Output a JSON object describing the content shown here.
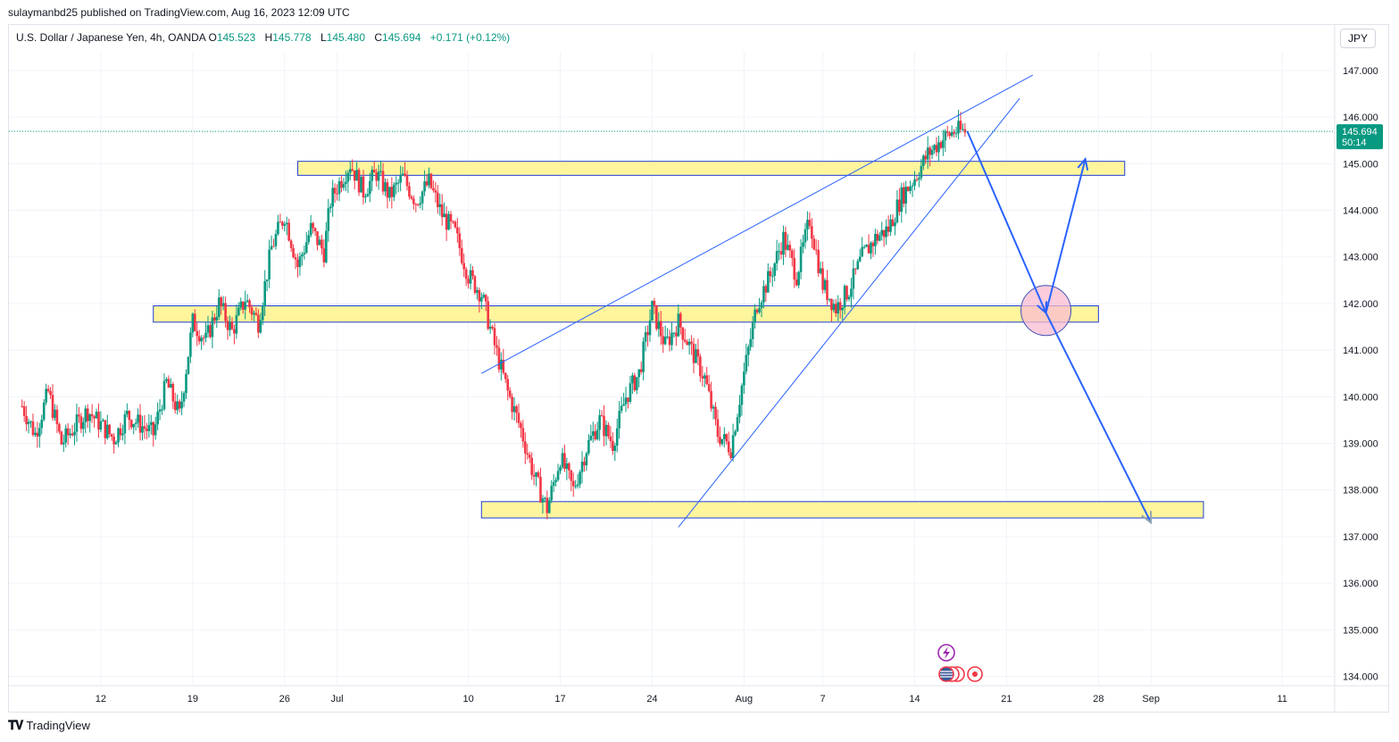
{
  "header": {
    "published": "sulaymanbd25 published on TradingView.com, Aug 16, 2023 12:09 UTC"
  },
  "legend": {
    "symbol": "U.S. Dollar / Japanese Yen, 4h, OANDA",
    "open_label": "O",
    "open": "145.523",
    "high_label": "H",
    "high": "145.778",
    "low_label": "L",
    "low": "145.480",
    "close_label": "C",
    "close": "145.694",
    "change": "+0.171 (+0.12%)"
  },
  "currency_button": "JPY",
  "price_tag": {
    "price": "145.694",
    "countdown": "50:14"
  },
  "footer": {
    "brand": "TradingView",
    "logo": "tradingview-logo"
  },
  "chart_data": {
    "type": "candlestick",
    "timeframe": "4h",
    "ylim": [
      133.8,
      147.4
    ],
    "y_ticks": [
      "147.000",
      "146.000",
      "145.000",
      "144.000",
      "143.000",
      "142.000",
      "141.000",
      "140.000",
      "139.000",
      "138.000",
      "137.000",
      "136.000",
      "135.000",
      "134.000"
    ],
    "x_ticks": [
      {
        "label": "12",
        "day": 12
      },
      {
        "label": "19",
        "day": 19
      },
      {
        "label": "26",
        "day": 26
      },
      {
        "label": "Jul",
        "day": 30
      },
      {
        "label": "10",
        "day": 40
      },
      {
        "label": "17",
        "day": 47
      },
      {
        "label": "24",
        "day": 54
      },
      {
        "label": "Aug",
        "day": 61
      },
      {
        "label": "7",
        "day": 67
      },
      {
        "label": "14",
        "day": 74
      },
      {
        "label": "21",
        "day": 81
      },
      {
        "label": "28",
        "day": 88
      },
      {
        "label": "Sep",
        "day": 92
      },
      {
        "label": "11",
        "day": 102
      }
    ],
    "x_day_origin": "Jun 0, 2023",
    "last_price": 145.694,
    "colors": {
      "up": "#089981",
      "down": "#f23645",
      "zone_fill": "#fff59d",
      "zone_stroke": "#1e3fd8",
      "trend": "#2962ff",
      "arrow": "#2962ff",
      "circle_fill": "#f8bbd0",
      "circle_stroke": "#3f51b5"
    },
    "path": [
      [
        6,
        139.8
      ],
      [
        7,
        139.2
      ],
      [
        8,
        140.1
      ],
      [
        9,
        139.0
      ],
      [
        11,
        139.7
      ],
      [
        13,
        139.1
      ],
      [
        14,
        139.6
      ],
      [
        16,
        139.2
      ],
      [
        17,
        140.3
      ],
      [
        18,
        139.6
      ],
      [
        19,
        141.6
      ],
      [
        20,
        141.2
      ],
      [
        21,
        142.0
      ],
      [
        22,
        141.4
      ],
      [
        23,
        142.1
      ],
      [
        24,
        141.6
      ],
      [
        25,
        143.2
      ],
      [
        26,
        143.9
      ],
      [
        27,
        142.8
      ],
      [
        28,
        143.6
      ],
      [
        29,
        143.1
      ],
      [
        29.5,
        144.2
      ],
      [
        30,
        144.5
      ],
      [
        31,
        145.0
      ],
      [
        32,
        144.4
      ],
      [
        33,
        144.8
      ],
      [
        34,
        144.3
      ],
      [
        35,
        144.7
      ],
      [
        36,
        144.2
      ],
      [
        37,
        144.6
      ],
      [
        38,
        143.9
      ],
      [
        39,
        143.5
      ],
      [
        40,
        142.6
      ],
      [
        41,
        142.2
      ],
      [
        42,
        141.1
      ],
      [
        43,
        140.1
      ],
      [
        44,
        139.3
      ],
      [
        45,
        138.3
      ],
      [
        46,
        137.6
      ],
      [
        47,
        138.7
      ],
      [
        48,
        138.0
      ],
      [
        49,
        138.9
      ],
      [
        50,
        139.5
      ],
      [
        51,
        139.0
      ],
      [
        52,
        140.0
      ],
      [
        53,
        140.5
      ],
      [
        54,
        141.9
      ],
      [
        55,
        141.1
      ],
      [
        56,
        141.6
      ],
      [
        57,
        141.0
      ],
      [
        58,
        140.4
      ],
      [
        59,
        139.2
      ],
      [
        60,
        138.9
      ],
      [
        61,
        140.5
      ],
      [
        62,
        142.0
      ],
      [
        63,
        142.6
      ],
      [
        64,
        143.4
      ],
      [
        65,
        142.6
      ],
      [
        66,
        143.8
      ],
      [
        67,
        142.4
      ],
      [
        68,
        141.9
      ],
      [
        69,
        142.3
      ],
      [
        70,
        143.0
      ],
      [
        71,
        143.4
      ],
      [
        72,
        143.6
      ],
      [
        73,
        144.3
      ],
      [
        74,
        144.7
      ],
      [
        75,
        145.2
      ],
      [
        76,
        145.5
      ],
      [
        77,
        145.7
      ],
      [
        78,
        145.694
      ]
    ],
    "zones": [
      {
        "from_day": 27,
        "to_day": 90,
        "low": 144.75,
        "high": 145.05
      },
      {
        "from_day": 16,
        "to_day": 88,
        "low": 141.6,
        "high": 141.95
      },
      {
        "from_day": 41,
        "to_day": 96,
        "low": 137.4,
        "high": 137.75
      }
    ],
    "trendlines": [
      {
        "from": [
          41,
          140.5
        ],
        "to": [
          83,
          146.9
        ]
      },
      {
        "from": [
          56,
          137.2
        ],
        "to": [
          82,
          146.4
        ]
      }
    ],
    "projection": [
      [
        78,
        145.7
      ],
      [
        84,
        141.8
      ],
      [
        87,
        145.1
      ]
    ],
    "projection2": [
      [
        84,
        141.8
      ],
      [
        92,
        137.3
      ]
    ],
    "circle": {
      "day": 84,
      "price": 141.85
    }
  }
}
